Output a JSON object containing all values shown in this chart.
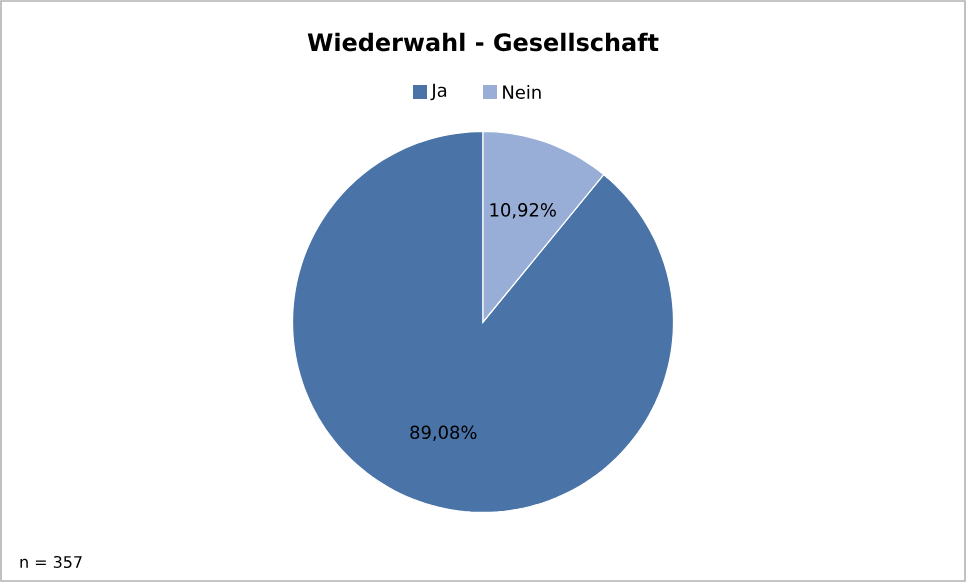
{
  "chart_data": {
    "type": "pie",
    "title": "Wiederwahl - Gesellschaft",
    "categories": [
      "Ja",
      "Nein"
    ],
    "values": [
      89.08,
      10.92
    ],
    "colors": [
      "#4a74a8",
      "#98aed6"
    ],
    "value_labels": [
      "89,08%",
      "10,92%"
    ],
    "legend": "top",
    "annotations": [
      "n = 357"
    ]
  }
}
